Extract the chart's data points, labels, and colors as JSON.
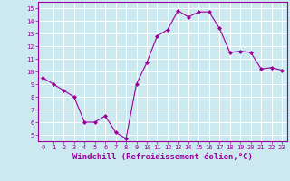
{
  "x": [
    0,
    1,
    2,
    3,
    4,
    5,
    6,
    7,
    8,
    9,
    10,
    11,
    12,
    13,
    14,
    15,
    16,
    17,
    18,
    19,
    20,
    21,
    22,
    23
  ],
  "y": [
    9.5,
    9.0,
    8.5,
    8.0,
    6.0,
    6.0,
    6.5,
    5.2,
    4.7,
    9.0,
    10.7,
    12.8,
    13.3,
    14.8,
    14.3,
    14.7,
    14.7,
    13.4,
    11.5,
    11.6,
    11.5,
    10.2,
    10.3,
    10.1
  ],
  "line_color": "#990099",
  "marker": "D",
  "marker_size": 2.0,
  "xlabel": "Windchill (Refroidissement éolien,°C)",
  "xlabel_fontsize": 6.5,
  "bg_color": "#cce9f0",
  "grid_color": "#ffffff",
  "tick_color": "#990099",
  "label_color": "#990099",
  "ylim": [
    4.5,
    15.5
  ],
  "xlim": [
    -0.5,
    23.5
  ],
  "yticks": [
    5,
    6,
    7,
    8,
    9,
    10,
    11,
    12,
    13,
    14,
    15
  ],
  "xticks": [
    0,
    1,
    2,
    3,
    4,
    5,
    6,
    7,
    8,
    9,
    10,
    11,
    12,
    13,
    14,
    15,
    16,
    17,
    18,
    19,
    20,
    21,
    22,
    23
  ]
}
